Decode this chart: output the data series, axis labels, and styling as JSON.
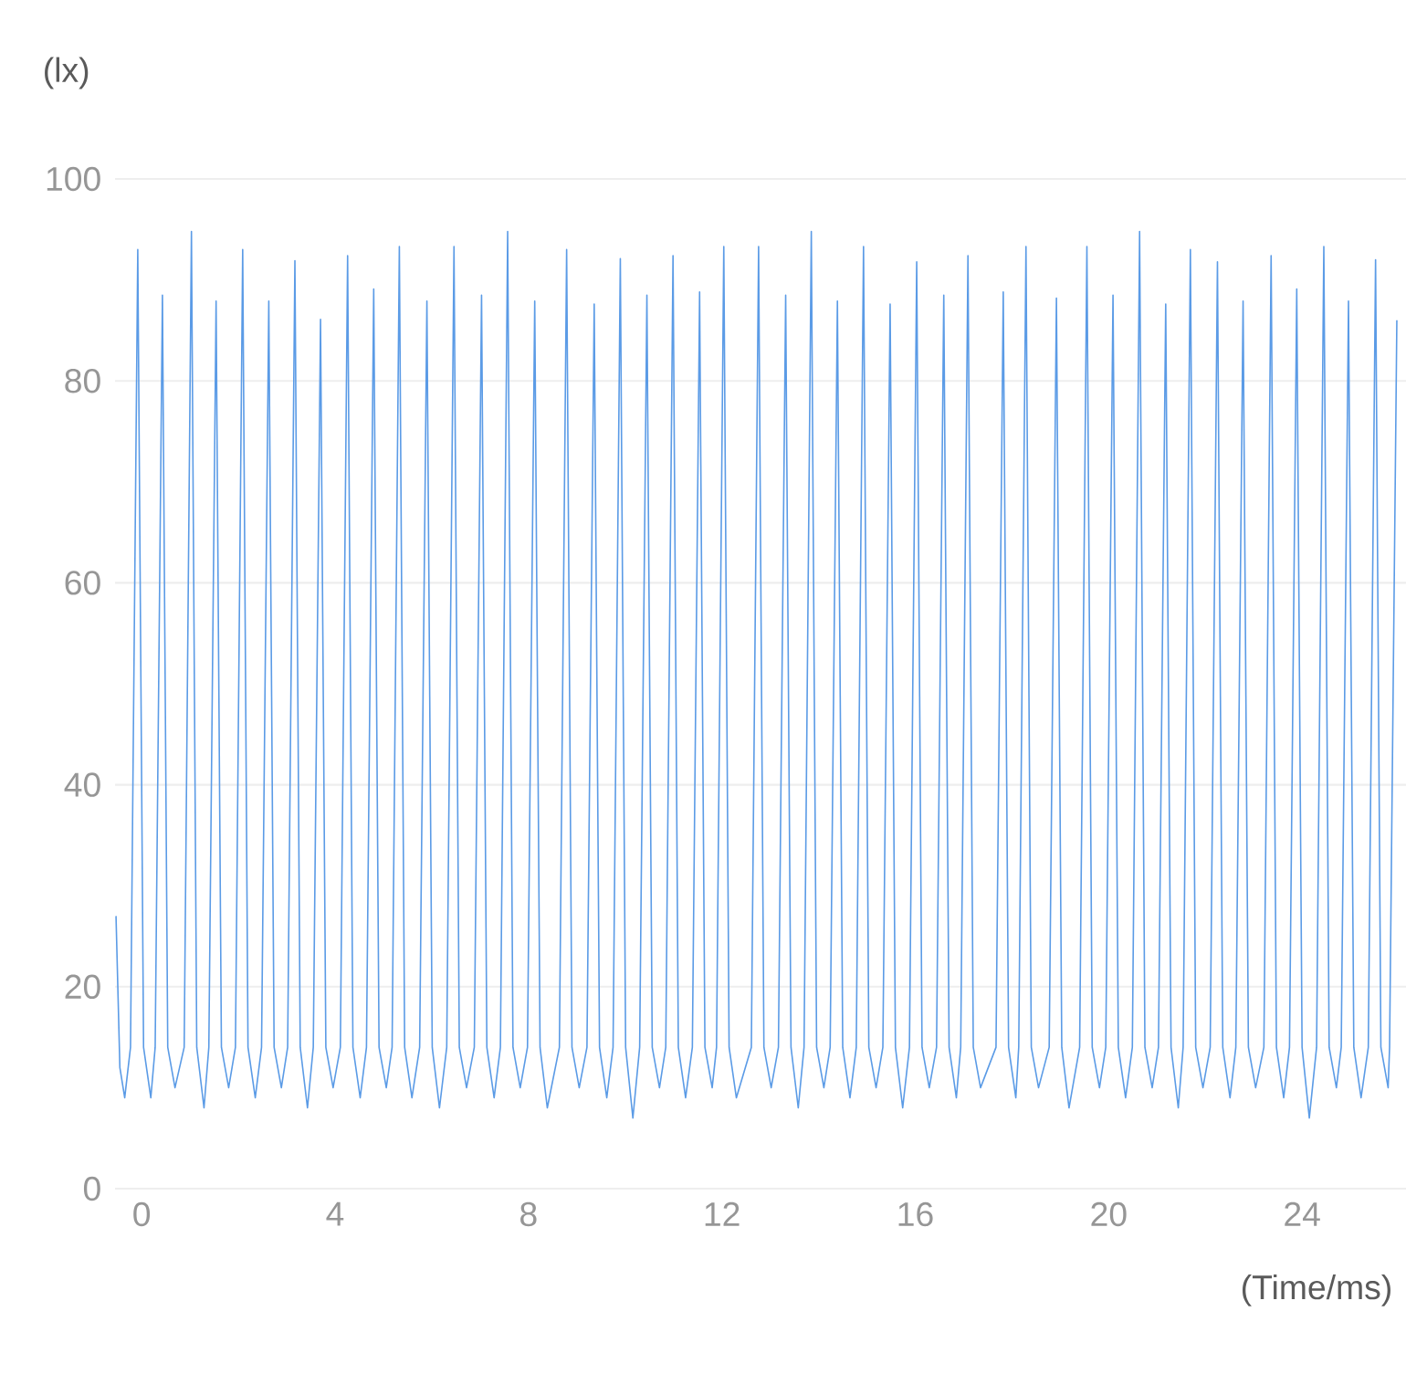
{
  "chart_data": {
    "type": "line",
    "ylabel": "(lx)",
    "xlabel": "(Time/ms)",
    "xlim": [
      -0.55,
      26.15
    ],
    "xticks": [
      0,
      4,
      8,
      12,
      16,
      20,
      24
    ],
    "ylim": [
      0,
      100
    ],
    "yticks": [
      0,
      20,
      40,
      60,
      80,
      100
    ],
    "grid": "y",
    "x": [
      -0.53,
      -0.45,
      -0.35,
      -0.23,
      -0.08,
      0.04,
      0.19,
      0.28,
      0.43,
      0.54,
      0.69,
      0.88,
      1.03,
      1.14,
      1.29,
      1.39,
      1.54,
      1.65,
      1.8,
      1.94,
      2.09,
      2.2,
      2.35,
      2.48,
      2.63,
      2.74,
      2.89,
      3.02,
      3.17,
      3.28,
      3.43,
      3.55,
      3.7,
      3.81,
      3.96,
      4.11,
      4.26,
      4.37,
      4.52,
      4.65,
      4.8,
      4.91,
      5.06,
      5.18,
      5.33,
      5.44,
      5.59,
      5.75,
      5.9,
      6.01,
      6.16,
      6.31,
      6.46,
      6.57,
      6.72,
      6.88,
      7.03,
      7.14,
      7.29,
      7.42,
      7.57,
      7.68,
      7.83,
      7.98,
      8.13,
      8.24,
      8.39,
      8.64,
      8.79,
      8.9,
      9.05,
      9.21,
      9.36,
      9.47,
      9.62,
      9.75,
      9.9,
      10.01,
      10.16,
      10.3,
      10.45,
      10.56,
      10.71,
      10.84,
      10.99,
      11.1,
      11.25,
      11.39,
      11.54,
      11.65,
      11.8,
      11.89,
      12.04,
      12.15,
      12.3,
      12.61,
      12.76,
      12.87,
      13.02,
      13.17,
      13.32,
      13.43,
      13.58,
      13.7,
      13.85,
      13.96,
      14.11,
      14.24,
      14.39,
      14.5,
      14.65,
      14.78,
      14.93,
      15.04,
      15.19,
      15.33,
      15.48,
      15.59,
      15.74,
      15.88,
      16.03,
      16.14,
      16.29,
      16.44,
      16.59,
      16.7,
      16.85,
      16.94,
      17.09,
      17.2,
      17.35,
      17.67,
      17.82,
      17.93,
      18.08,
      18.14,
      18.29,
      18.4,
      18.55,
      18.77,
      18.92,
      19.03,
      19.18,
      19.4,
      19.55,
      19.66,
      19.81,
      19.94,
      20.09,
      20.2,
      20.35,
      20.49,
      20.64,
      20.75,
      20.9,
      21.03,
      21.18,
      21.29,
      21.44,
      21.54,
      21.69,
      21.8,
      21.95,
      22.1,
      22.25,
      22.36,
      22.51,
      22.63,
      22.78,
      22.89,
      23.04,
      23.21,
      23.36,
      23.47,
      23.62,
      23.74,
      23.89,
      24.0,
      24.15,
      24.3,
      24.45,
      24.56,
      24.71,
      24.81,
      24.96,
      25.07,
      25.22,
      25.37,
      25.52,
      25.63,
      25.78,
      25.81,
      25.96
    ],
    "series": [
      {
        "color": "#5b9be6",
        "values": [
          27,
          12,
          9,
          14,
          93,
          14,
          9,
          14,
          88.5,
          14,
          10,
          14,
          94.8,
          14,
          8,
          14,
          87.9,
          14,
          10,
          14,
          93,
          14,
          9,
          14,
          87.9,
          14,
          10,
          14,
          91.9,
          14,
          8,
          14,
          86.1,
          14,
          10,
          14,
          92.4,
          14,
          9,
          14,
          89.1,
          14,
          10,
          14,
          93.3,
          14,
          9,
          14,
          87.9,
          14,
          8,
          14,
          93.3,
          14,
          10,
          14,
          88.5,
          14,
          9,
          14,
          94.8,
          14,
          10,
          14,
          87.9,
          14,
          8,
          14,
          93,
          14,
          10,
          14,
          87.6,
          14,
          9,
          14,
          92.1,
          14,
          7,
          14,
          88.5,
          14,
          10,
          14,
          92.4,
          14,
          9,
          14,
          88.8,
          14,
          10,
          14,
          93.3,
          14,
          9,
          14,
          93.3,
          14,
          10,
          14,
          88.5,
          14,
          8,
          14,
          94.8,
          14,
          10,
          14,
          87.9,
          14,
          9,
          14,
          93.3,
          14,
          10,
          14,
          87.6,
          14,
          8,
          14,
          91.8,
          14,
          10,
          14,
          88.5,
          14,
          9,
          14,
          92.4,
          14,
          10,
          14,
          88.8,
          14,
          9,
          14,
          93.3,
          14,
          10,
          14,
          88.2,
          14,
          8,
          14,
          93.3,
          14,
          10,
          14,
          88.5,
          14,
          9,
          14,
          94.8,
          14,
          10,
          14,
          87.6,
          14,
          8,
          14,
          93,
          14,
          10,
          14,
          91.8,
          14,
          9,
          14,
          87.9,
          14,
          10,
          14,
          92.4,
          14,
          9,
          14,
          89.1,
          14,
          7,
          14,
          93.3,
          14,
          10,
          14,
          87.9,
          14,
          9,
          14,
          92,
          14,
          10,
          14,
          86
        ]
      }
    ]
  }
}
